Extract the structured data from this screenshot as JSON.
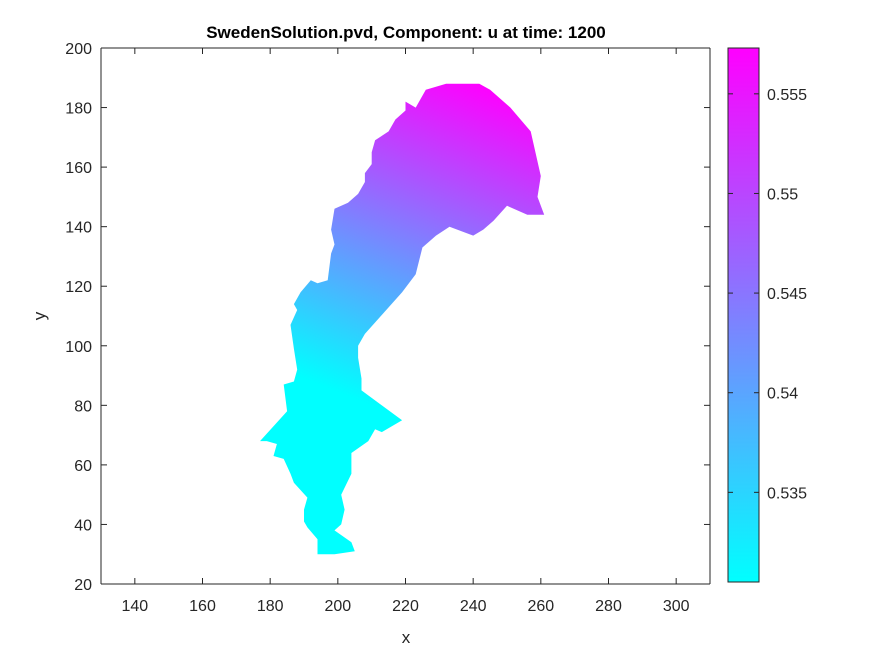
{
  "chart_data": {
    "type": "heatmap",
    "title": "SwedenSolution.pvd, Component: u at time: 1200",
    "xlabel": "x",
    "ylabel": "y",
    "xlim": [
      130,
      310
    ],
    "ylim": [
      20,
      200
    ],
    "xticks": [
      140,
      160,
      180,
      200,
      220,
      240,
      260,
      280,
      300
    ],
    "yticks": [
      20,
      40,
      60,
      80,
      100,
      120,
      140,
      160,
      180,
      200
    ],
    "colorbar": {
      "range": [
        0.5305,
        0.5573
      ],
      "ticks": [
        0.535,
        0.54,
        0.545,
        0.55,
        0.555
      ],
      "tick_labels": [
        "0.535",
        "0.54",
        "0.545",
        "0.55",
        "0.555"
      ],
      "colormap": "cool",
      "color_low": "#00ffff",
      "color_high": "#ff00ff"
    },
    "region_outline": [
      [
        241.8,
        188
      ],
      [
        245,
        186
      ],
      [
        251,
        180
      ],
      [
        257,
        172
      ],
      [
        260,
        157
      ],
      [
        259,
        150
      ],
      [
        261,
        144
      ],
      [
        256,
        144
      ],
      [
        250,
        147
      ],
      [
        246,
        142
      ],
      [
        243,
        139
      ],
      [
        240,
        137
      ],
      [
        233,
        140
      ],
      [
        229,
        137
      ],
      [
        225,
        133
      ],
      [
        223,
        124
      ],
      [
        219,
        118
      ],
      [
        208,
        104
      ],
      [
        206,
        100
      ],
      [
        206,
        96
      ],
      [
        207,
        89
      ],
      [
        207,
        85
      ],
      [
        219,
        75
      ],
      [
        213,
        71
      ],
      [
        211,
        72
      ],
      [
        209,
        68
      ],
      [
        204,
        64
      ],
      [
        204,
        57
      ],
      [
        201,
        50
      ],
      [
        202,
        45
      ],
      [
        201,
        40
      ],
      [
        199,
        38
      ],
      [
        204,
        34
      ],
      [
        205,
        31
      ],
      [
        199,
        30
      ],
      [
        194,
        30
      ],
      [
        194,
        35
      ],
      [
        191,
        39
      ],
      [
        190,
        41
      ],
      [
        190,
        45
      ],
      [
        191,
        49
      ],
      [
        187,
        54
      ],
      [
        186,
        57
      ],
      [
        184,
        62
      ],
      [
        181,
        63
      ],
      [
        182,
        67
      ],
      [
        179,
        68
      ],
      [
        177,
        68
      ],
      [
        181,
        73
      ],
      [
        185,
        78
      ],
      [
        184,
        87
      ],
      [
        187,
        88
      ],
      [
        188,
        92
      ],
      [
        187,
        99
      ],
      [
        186,
        107
      ],
      [
        188,
        112
      ],
      [
        187,
        114
      ],
      [
        189,
        118
      ],
      [
        192,
        122
      ],
      [
        194,
        121
      ],
      [
        197,
        122
      ],
      [
        198,
        131
      ],
      [
        199,
        134
      ],
      [
        198,
        139
      ],
      [
        199,
        146
      ],
      [
        203,
        148
      ],
      [
        206,
        151
      ],
      [
        208,
        155
      ],
      [
        208,
        158
      ],
      [
        210,
        161
      ],
      [
        210,
        165
      ],
      [
        211,
        169
      ],
      [
        215,
        172
      ],
      [
        217,
        176
      ],
      [
        220,
        179
      ],
      [
        220,
        182
      ],
      [
        223,
        180
      ],
      [
        226,
        186
      ],
      [
        232,
        188
      ]
    ],
    "gradient_from": [
      221,
      75
    ],
    "gradient_to": [
      258,
      181
    ]
  }
}
